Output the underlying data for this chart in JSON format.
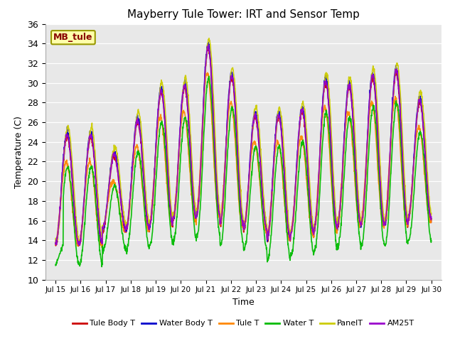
{
  "title": "Mayberry Tule Tower: IRT and Sensor Temp",
  "xlabel": "Time",
  "ylabel": "Temperature (C)",
  "ylim": [
    10,
    36
  ],
  "yticks": [
    10,
    12,
    14,
    16,
    18,
    20,
    22,
    24,
    26,
    28,
    30,
    32,
    34,
    36
  ],
  "xtick_labels": [
    "Jul 15",
    "Jul 16",
    "Jul 17",
    "Jul 18",
    "Jul 19",
    "Jul 20",
    "Jul 21",
    "Jul 22",
    "Jul 23",
    "Jul 24",
    "Jul 25",
    "Jul 26",
    "Jul 27",
    "Jul 28",
    "Jul 29",
    "Jul 30"
  ],
  "site_label": "MB_tule",
  "lines": [
    {
      "name": "Tule Body T",
      "color": "#cc0000"
    },
    {
      "name": "Water Body T",
      "color": "#0000cc"
    },
    {
      "name": "Tule T",
      "color": "#ff8800"
    },
    {
      "name": "Water T",
      "color": "#00bb00"
    },
    {
      "name": "PanelT",
      "color": "#cccc00"
    },
    {
      "name": "AM25T",
      "color": "#9900cc"
    }
  ],
  "bg_color": "#e8e8e8",
  "fig_bg": "#ffffff",
  "n_days": 16,
  "pts_per_day": 96,
  "day_mins": [
    13.5,
    13.5,
    15.0,
    15.0,
    15.5,
    16.0,
    16.5,
    15.5,
    15.0,
    14.0,
    14.5,
    15.0,
    15.5,
    15.5,
    15.5,
    16.0
  ],
  "day_maxs": [
    24.5,
    24.5,
    22.5,
    26.0,
    29.0,
    29.5,
    33.5,
    30.5,
    26.5,
    26.5,
    27.0,
    30.0,
    29.5,
    30.5,
    31.0,
    28.0
  ],
  "offsets": {
    "tule_body": {
      "min": 0.0,
      "max": 0.0,
      "phase": 0.0
    },
    "water_body": {
      "min": 0.2,
      "max": 0.5,
      "phase": 0.0
    },
    "tule_t": {
      "min": 0.0,
      "max": -2.5,
      "phase": 0.04
    },
    "water_t": {
      "min": -2.0,
      "max": -3.0,
      "phase": -0.02
    },
    "panel_t": {
      "min": 0.5,
      "max": 1.0,
      "phase": -0.03
    },
    "am25t": {
      "min": 0.2,
      "max": 0.2,
      "phase": 0.0
    }
  },
  "extra_water_t_start": true
}
